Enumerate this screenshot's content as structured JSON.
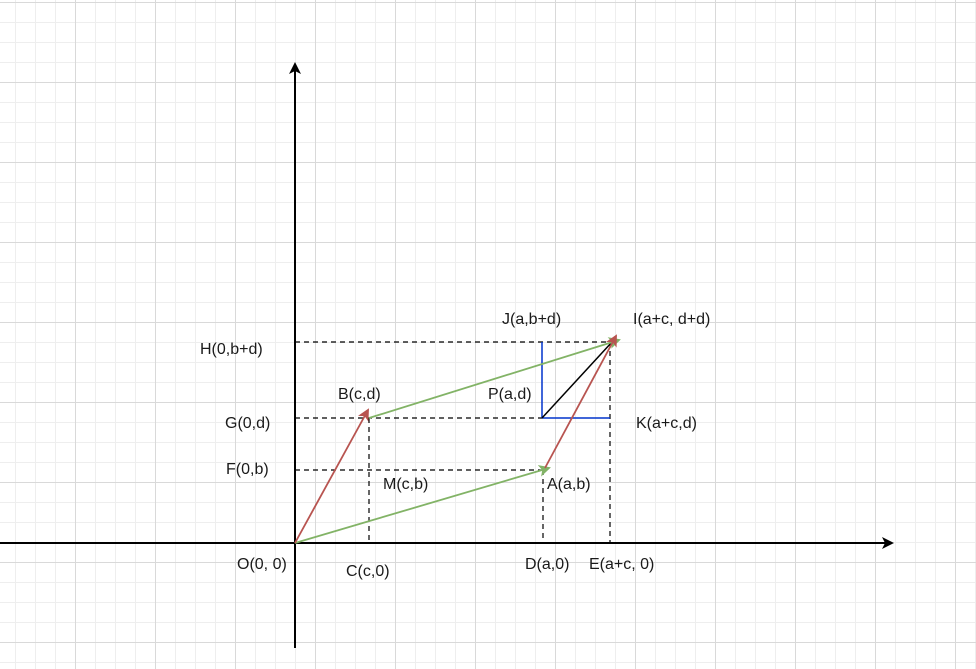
{
  "labels": {
    "O": "O(0, 0)",
    "C": "C(c,0)",
    "D": "D(a,0)",
    "E": "E(a+c, 0)",
    "F": "F(0,b)",
    "G": "G(0,d)",
    "H": "H(0,b+d)",
    "M": "M(c,b)",
    "A": "A(a,b)",
    "B": "B(c,d)",
    "P": "P(a,d)",
    "K": "K(a+c,d)",
    "J": "J(a,b+d)",
    "I": "I(a+c, d+d)"
  },
  "colors": {
    "axis": "#000000",
    "vector_a": "#82b366",
    "vector_c": "#b85450",
    "component": "#0033cc",
    "diagonal": "#000000",
    "guide": "#000000",
    "grid": "#d9d9d9"
  }
}
